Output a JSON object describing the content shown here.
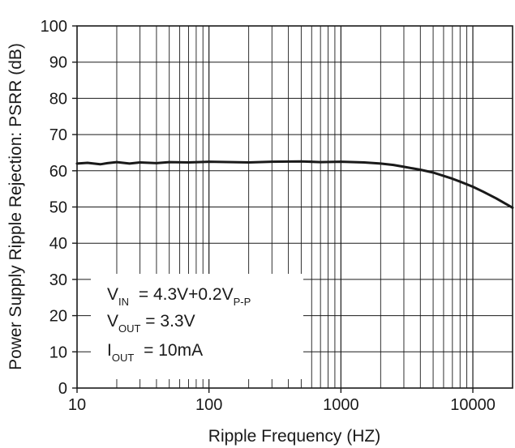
{
  "chart_data": {
    "type": "line",
    "x_scale": "log",
    "xlabel": "Ripple Frequency (HZ)",
    "ylabel": "Power Supply Ripple Rejection: PSRR (dB)",
    "xlim": [
      10,
      20000
    ],
    "ylim": [
      0,
      100
    ],
    "grid": true,
    "x_ticks": [
      10,
      100,
      1000,
      10000
    ],
    "x_tick_labels": [
      "10",
      "100",
      "1000",
      "10000"
    ],
    "y_ticks": [
      0,
      10,
      20,
      30,
      40,
      50,
      60,
      70,
      80,
      90,
      100
    ],
    "y_tick_labels": [
      "0",
      "10",
      "20",
      "30",
      "40",
      "50",
      "60",
      "70",
      "80",
      "90",
      "100"
    ],
    "series": [
      {
        "x": [
          10,
          12,
          15,
          17,
          20,
          25,
          30,
          40,
          50,
          70,
          100,
          150,
          200,
          300,
          500,
          700,
          1000,
          1500,
          2000,
          2500,
          3000,
          4000,
          5000,
          6000,
          7000,
          8000,
          10000,
          12000,
          15000,
          20000
        ],
        "y": [
          62.0,
          62.2,
          61.8,
          62.1,
          62.4,
          62.0,
          62.3,
          62.1,
          62.4,
          62.3,
          62.5,
          62.4,
          62.3,
          62.5,
          62.6,
          62.4,
          62.5,
          62.3,
          62.0,
          61.6,
          61.1,
          60.3,
          59.5,
          58.6,
          57.8,
          57.0,
          55.6,
          54.2,
          52.4,
          49.8
        ]
      }
    ],
    "color": "#1a1a1a"
  },
  "annotation": {
    "vin_main": "V",
    "vin_sub": "IN",
    "vin_value": " = 4.3V+0.2V",
    "vin_value_sub": "P-P",
    "vout_main": "V",
    "vout_sub": "OUT",
    "vout_value": " = 3.3V",
    "iout_main": "I",
    "iout_sub": "OUT",
    "iout_value": " = 10mA"
  }
}
